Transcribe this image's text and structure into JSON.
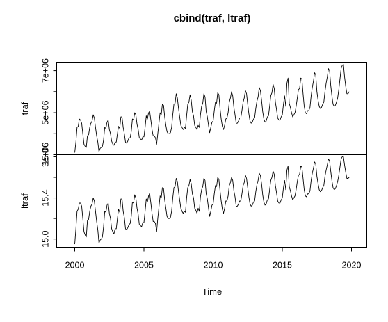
{
  "chart_data": {
    "type": "line",
    "title": "cbind(traf, ltraf)",
    "xlabel": "Time",
    "x_range": [
      2000,
      2020
    ],
    "x_ticks": [
      2000,
      2005,
      2010,
      2015,
      2020
    ],
    "x_tick_labels": [
      "2000",
      "2005",
      "2010",
      "2015",
      "2020"
    ],
    "x_start": 2000.0,
    "x_frequency": 12,
    "panels": [
      {
        "name": "traf",
        "ylabel": "traf",
        "y_range": [
          3000000,
          7400000
        ],
        "y_ticks": [
          3000000,
          4000000,
          5000000,
          6000000,
          7000000
        ],
        "y_tick_labels": [
          "3e+06",
          "",
          "5e+06",
          "",
          "7e+06"
        ],
        "values": [
          3100000,
          3600000,
          4300000,
          4350000,
          4700000,
          4650000,
          4500000,
          4000000,
          3500000,
          3400000,
          3350000,
          3900000,
          3950000,
          4300000,
          4500000,
          4600000,
          4900000,
          4750000,
          4300000,
          3900000,
          3600000,
          3150000,
          3300000,
          3350000,
          3400000,
          3700000,
          4300000,
          4250000,
          4550000,
          4650000,
          4200000,
          4000000,
          3650000,
          3500000,
          3450000,
          3600000,
          3600000,
          4000000,
          4350000,
          4250000,
          4800000,
          4800000,
          4300000,
          4000000,
          3600000,
          3550000,
          3650000,
          3800000,
          3800000,
          4100000,
          4700000,
          4650000,
          5000000,
          4900000,
          4450000,
          4200000,
          3800000,
          3750000,
          3700000,
          3850000,
          3850000,
          4300000,
          4850000,
          4700000,
          5000000,
          5050000,
          4650000,
          4200000,
          3900000,
          3900000,
          3800000,
          3500000,
          4000000,
          4500000,
          5000000,
          4900000,
          5400000,
          5350000,
          4800000,
          4400000,
          4100000,
          4000000,
          4000000,
          4050000,
          4300000,
          4900000,
          5400000,
          5450000,
          5900000,
          5700000,
          5200000,
          4800000,
          4400000,
          4300000,
          4200000,
          4300000,
          4250000,
          4850000,
          5400000,
          5500000,
          5850000,
          5600000,
          5050000,
          4850000,
          4400000,
          4300000,
          4200000,
          4400000,
          4300000,
          4900000,
          5300000,
          5450000,
          5900000,
          5750000,
          5050000,
          4800000,
          4400000,
          4050000,
          4300000,
          4550000,
          4600000,
          5100000,
          5500000,
          5450000,
          5950000,
          5850000,
          5200000,
          4700000,
          4350000,
          4200000,
          4400000,
          4700000,
          4750000,
          5000000,
          5500000,
          5700000,
          6000000,
          5800000,
          5250000,
          4900000,
          4500000,
          4500000,
          4600000,
          4750000,
          4750000,
          5100000,
          5500000,
          5700000,
          6050000,
          5900000,
          5400000,
          4950000,
          4600000,
          4500000,
          4550000,
          4700000,
          4750000,
          5200000,
          5550000,
          5750000,
          6200000,
          6050000,
          5600000,
          5050000,
          4700000,
          4550000,
          4600000,
          4800000,
          4850000,
          5300000,
          5800000,
          5950000,
          6350000,
          6150000,
          5500000,
          5150000,
          4750000,
          4650000,
          4650000,
          4800000,
          4900000,
          5400000,
          5800000,
          5300000,
          6400000,
          6650000,
          5450000,
          5250000,
          5000000,
          4800000,
          4900000,
          5000000,
          5300000,
          5700000,
          6100000,
          6150000,
          6650000,
          6600000,
          5900000,
          5300000,
          5000000,
          4950000,
          5100000,
          5100000,
          5250000,
          5800000,
          6200000,
          6500000,
          6900000,
          6800000,
          6000000,
          5600000,
          5300000,
          5200000,
          5250000,
          5400000,
          5500000,
          6000000,
          6400000,
          6700000,
          7100000,
          7000000,
          6300000,
          5800000,
          5400000,
          5300000,
          5350000,
          5500000,
          5700000,
          6100000,
          6600000,
          7100000,
          7250000,
          7300000,
          6700000,
          6250000,
          5900000,
          5900000,
          6000000
        ]
      },
      {
        "name": "ltraf",
        "ylabel": "ltraf",
        "y_range": [
          14.92,
          15.82
        ],
        "y_ticks": [
          15.0,
          15.2,
          15.4,
          15.6,
          15.8
        ],
        "y_tick_labels": [
          "15.0",
          "",
          "15.4",
          "",
          "15.8"
        ],
        "values": [
          14.95,
          15.1,
          15.27,
          15.29,
          15.35,
          15.35,
          15.32,
          15.2,
          15.07,
          15.04,
          15.02,
          15.18,
          15.19,
          15.27,
          15.32,
          15.34,
          15.4,
          15.37,
          15.27,
          15.17,
          15.09,
          14.96,
          14.99,
          15.0,
          15.02,
          15.12,
          15.27,
          15.26,
          15.33,
          15.35,
          15.25,
          15.2,
          15.1,
          15.07,
          15.05,
          15.1,
          15.1,
          15.2,
          15.29,
          15.26,
          15.39,
          15.39,
          15.27,
          15.21,
          15.1,
          15.09,
          15.11,
          15.14,
          15.15,
          15.22,
          15.36,
          15.35,
          15.43,
          15.4,
          15.3,
          15.24,
          15.14,
          15.13,
          15.12,
          15.16,
          15.16,
          15.27,
          15.39,
          15.36,
          15.42,
          15.44,
          15.35,
          15.25,
          15.17,
          15.17,
          15.15,
          15.07,
          15.2,
          15.31,
          15.42,
          15.4,
          15.5,
          15.49,
          15.38,
          15.3,
          15.22,
          15.2,
          15.2,
          15.21,
          15.27,
          15.4,
          15.5,
          15.51,
          15.59,
          15.56,
          15.46,
          15.38,
          15.3,
          15.27,
          15.25,
          15.27,
          15.26,
          15.4,
          15.5,
          15.52,
          15.58,
          15.54,
          15.44,
          15.4,
          15.3,
          15.28,
          15.25,
          15.3,
          15.27,
          15.41,
          15.48,
          15.51,
          15.59,
          15.57,
          15.44,
          15.39,
          15.3,
          15.22,
          15.27,
          15.33,
          15.34,
          15.44,
          15.52,
          15.51,
          15.6,
          15.58,
          15.47,
          15.37,
          15.29,
          15.25,
          15.3,
          15.37,
          15.37,
          15.42,
          15.52,
          15.55,
          15.6,
          15.57,
          15.47,
          15.41,
          15.32,
          15.32,
          15.34,
          15.37,
          15.37,
          15.44,
          15.52,
          15.55,
          15.62,
          15.59,
          15.5,
          15.41,
          15.34,
          15.32,
          15.33,
          15.36,
          15.37,
          15.46,
          15.53,
          15.57,
          15.64,
          15.62,
          15.54,
          15.43,
          15.36,
          15.33,
          15.34,
          15.38,
          15.39,
          15.48,
          15.57,
          15.6,
          15.66,
          15.63,
          15.52,
          15.45,
          15.37,
          15.35,
          15.35,
          15.38,
          15.4,
          15.5,
          15.57,
          15.48,
          15.67,
          15.71,
          15.51,
          15.47,
          15.42,
          15.38,
          15.4,
          15.42,
          15.48,
          15.56,
          15.62,
          15.63,
          15.71,
          15.7,
          15.59,
          15.48,
          15.42,
          15.41,
          15.44,
          15.44,
          15.47,
          15.57,
          15.64,
          15.69,
          15.75,
          15.73,
          15.61,
          15.54,
          15.48,
          15.46,
          15.47,
          15.5,
          15.52,
          15.61,
          15.67,
          15.72,
          15.78,
          15.76,
          15.66,
          15.57,
          15.5,
          15.48,
          15.49,
          15.52,
          15.56,
          15.62,
          15.7,
          15.78,
          15.8,
          15.8,
          15.72,
          15.65,
          15.59,
          15.59,
          15.6
        ]
      }
    ]
  }
}
